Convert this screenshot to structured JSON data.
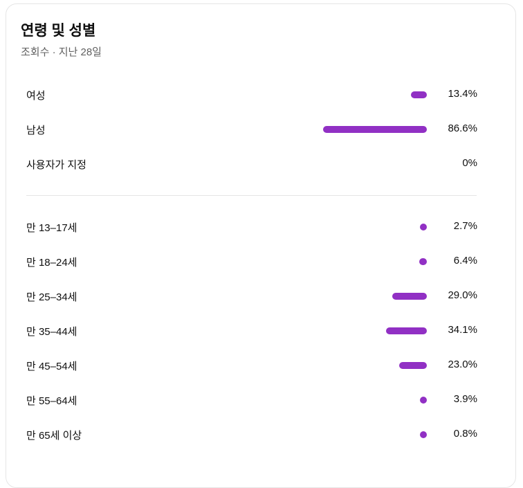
{
  "title": "연령 및 성별",
  "subtitle": "조회수 · 지난 28일",
  "accent_color": "#9130c4",
  "gender": [
    {
      "label": "여성",
      "value": "13.4%",
      "percent": 13.4
    },
    {
      "label": "남성",
      "value": "86.6%",
      "percent": 86.6
    },
    {
      "label": "사용자가 지정",
      "value": "0%",
      "percent": 0
    }
  ],
  "age": [
    {
      "label": "만 13–17세",
      "value": "2.7%",
      "percent": 2.7
    },
    {
      "label": "만 18–24세",
      "value": "6.4%",
      "percent": 6.4
    },
    {
      "label": "만 25–34세",
      "value": "29.0%",
      "percent": 29.0
    },
    {
      "label": "만 35–44세",
      "value": "34.1%",
      "percent": 34.1
    },
    {
      "label": "만 45–54세",
      "value": "23.0%",
      "percent": 23.0
    },
    {
      "label": "만 55–64세",
      "value": "3.9%",
      "percent": 3.9
    },
    {
      "label": "만 65세 이상",
      "value": "0.8%",
      "percent": 0.8
    }
  ]
}
